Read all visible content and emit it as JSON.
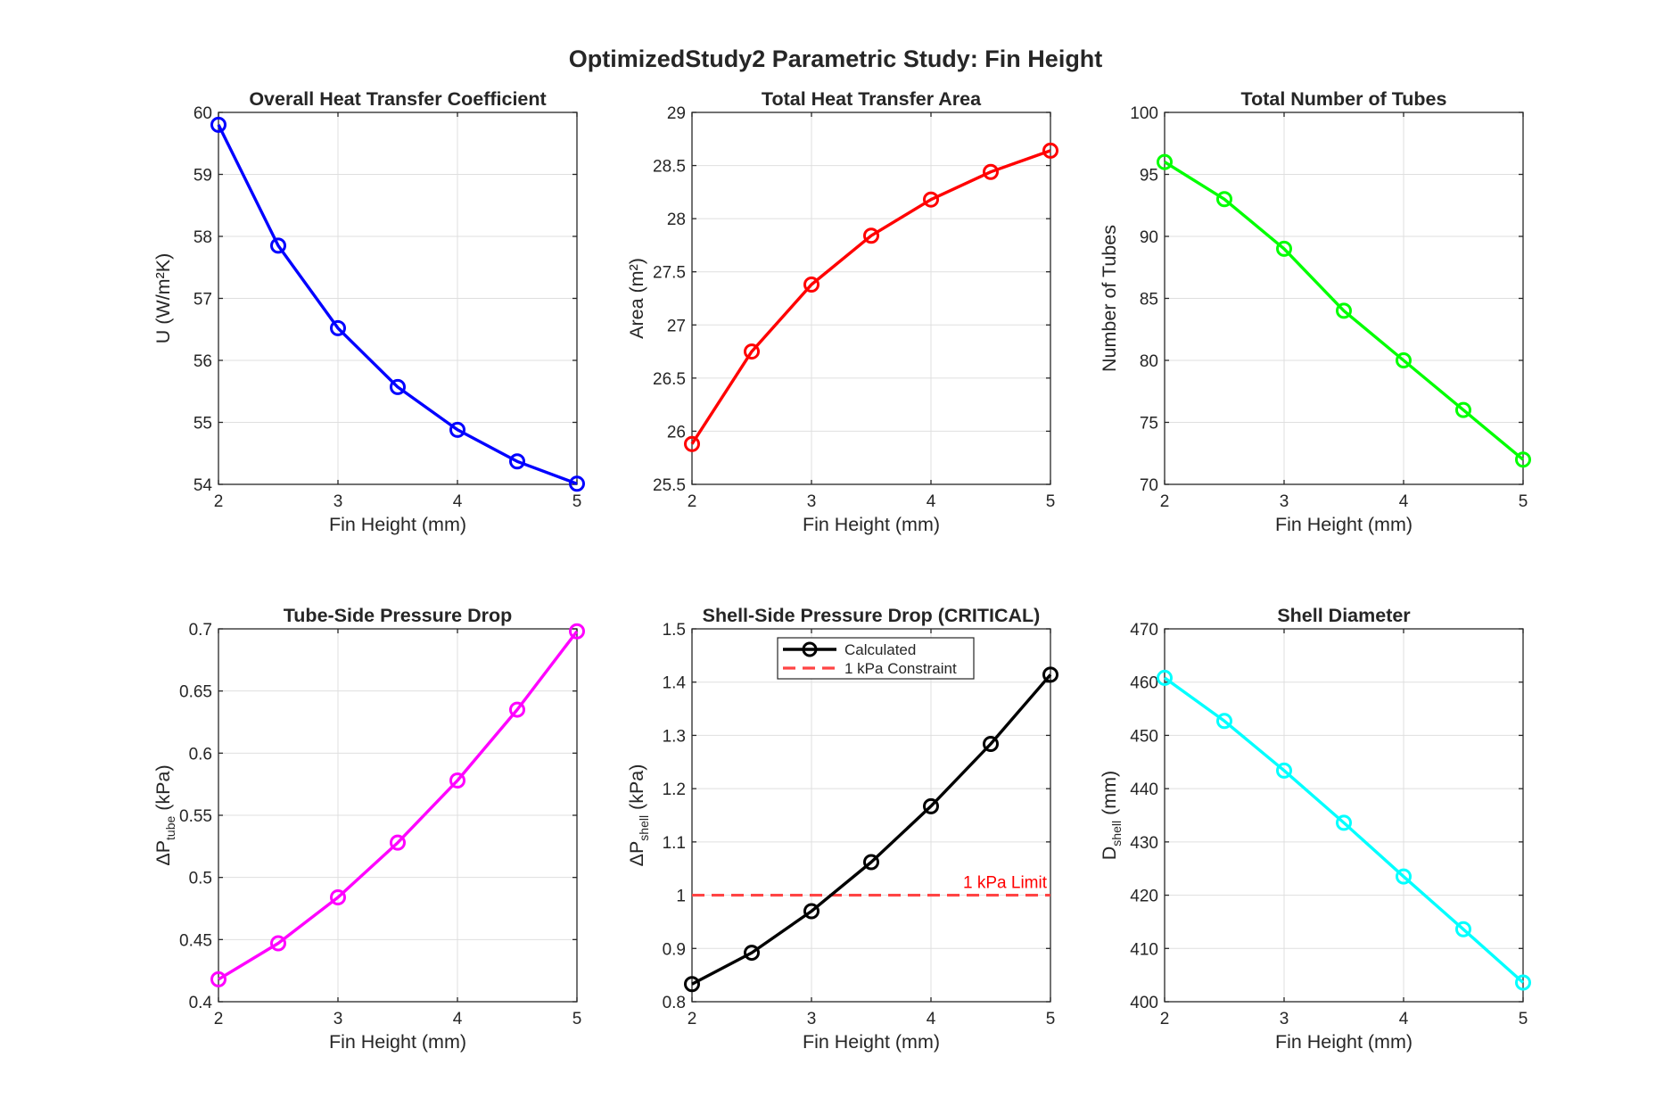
{
  "figure": {
    "suptitle": "OptimizedStudy2 Parametric Study: Fin Height"
  },
  "chart_data": [
    {
      "type": "line",
      "title": "Overall Heat Transfer Coefficient",
      "xlabel": "Fin Height (mm)",
      "ylabel": "U (W/m²K)",
      "xlim": [
        2,
        5
      ],
      "ylim": [
        54,
        60
      ],
      "xticks": [
        2,
        3,
        4,
        5
      ],
      "yticks": [
        54,
        55,
        56,
        57,
        58,
        59,
        60
      ],
      "grid": true,
      "color": "#0000ff",
      "x": [
        2,
        2.5,
        3,
        3.5,
        4,
        4.5,
        5
      ],
      "series": [
        {
          "values": [
            59.8,
            57.85,
            56.52,
            55.57,
            54.88,
            54.37,
            54.01
          ]
        }
      ]
    },
    {
      "type": "line",
      "title": "Total Heat Transfer Area",
      "xlabel": "Fin Height (mm)",
      "ylabel": "Area (m²)",
      "xlim": [
        2,
        5
      ],
      "ylim": [
        25.5,
        29
      ],
      "xticks": [
        2,
        3,
        4,
        5
      ],
      "yticks": [
        25.5,
        26,
        26.5,
        27,
        27.5,
        28,
        28.5,
        29
      ],
      "grid": true,
      "color": "#ff0000",
      "x": [
        2,
        2.5,
        3,
        3.5,
        4,
        4.5,
        5
      ],
      "series": [
        {
          "values": [
            25.88,
            26.75,
            27.38,
            27.84,
            28.18,
            28.44,
            28.64
          ]
        }
      ]
    },
    {
      "type": "line",
      "title": "Total Number of Tubes",
      "xlabel": "Fin Height (mm)",
      "ylabel": "Number of Tubes",
      "xlim": [
        2,
        5
      ],
      "ylim": [
        70,
        100
      ],
      "xticks": [
        2,
        3,
        4,
        5
      ],
      "yticks": [
        70,
        75,
        80,
        85,
        90,
        95,
        100
      ],
      "grid": true,
      "color": "#00ff00",
      "x": [
        2,
        2.5,
        3,
        3.5,
        4,
        4.5,
        5
      ],
      "series": [
        {
          "values": [
            96,
            93,
            89,
            84,
            80,
            76,
            72
          ]
        }
      ]
    },
    {
      "type": "line",
      "title": "Tube-Side Pressure Drop",
      "xlabel": "Fin Height (mm)",
      "ylabel": "ΔP",
      "ylabel_sub": "tube",
      "ylabel_unit": " (kPa)",
      "xlim": [
        2,
        5
      ],
      "ylim": [
        0.4,
        0.7
      ],
      "xticks": [
        2,
        3,
        4,
        5
      ],
      "yticks": [
        0.4,
        0.45,
        0.5,
        0.55,
        0.6,
        0.65,
        0.7
      ],
      "grid": true,
      "color": "#ff00ff",
      "x": [
        2,
        2.5,
        3,
        3.5,
        4,
        4.5,
        5
      ],
      "series": [
        {
          "values": [
            0.418,
            0.447,
            0.484,
            0.528,
            0.578,
            0.635,
            0.698
          ]
        }
      ]
    },
    {
      "type": "line",
      "title": "Shell-Side Pressure Drop (CRITICAL)",
      "xlabel": "Fin Height (mm)",
      "ylabel": "ΔP",
      "ylabel_sub": "shell",
      "ylabel_unit": " (kPa)",
      "xlim": [
        2,
        5
      ],
      "ylim": [
        0.8,
        1.5
      ],
      "xticks": [
        2,
        3,
        4,
        5
      ],
      "yticks": [
        0.8,
        0.9,
        1,
        1.1,
        1.2,
        1.3,
        1.4,
        1.5
      ],
      "grid": true,
      "color": "#000000",
      "x": [
        2,
        2.5,
        3,
        3.5,
        4,
        4.5,
        5
      ],
      "series": [
        {
          "name": "Calculated",
          "values": [
            0.833,
            0.892,
            0.97,
            1.062,
            1.167,
            1.284,
            1.414
          ]
        }
      ],
      "reference_line": {
        "name": "1 kPa Constraint",
        "y": 1,
        "color": "#ff4444",
        "style": "dashed"
      },
      "annotation": {
        "text": "1 kPa Limit",
        "x": 5,
        "y": 1,
        "color": "#ff0000"
      },
      "legend": {
        "position": "top-center",
        "entries": [
          "Calculated",
          "1 kPa Constraint"
        ]
      }
    },
    {
      "type": "line",
      "title": "Shell Diameter",
      "xlabel": "Fin Height (mm)",
      "ylabel": "D",
      "ylabel_sub": "shell",
      "ylabel_unit": " (mm)",
      "xlim": [
        2,
        5
      ],
      "ylim": [
        400,
        470
      ],
      "xticks": [
        2,
        3,
        4,
        5
      ],
      "yticks": [
        400,
        410,
        420,
        430,
        440,
        450,
        460,
        470
      ],
      "grid": true,
      "color": "#00ffff",
      "x": [
        2,
        2.5,
        3,
        3.5,
        4,
        4.5,
        5
      ],
      "series": [
        {
          "values": [
            460.8,
            452.7,
            443.4,
            433.6,
            423.5,
            413.6,
            403.6
          ]
        }
      ]
    }
  ]
}
